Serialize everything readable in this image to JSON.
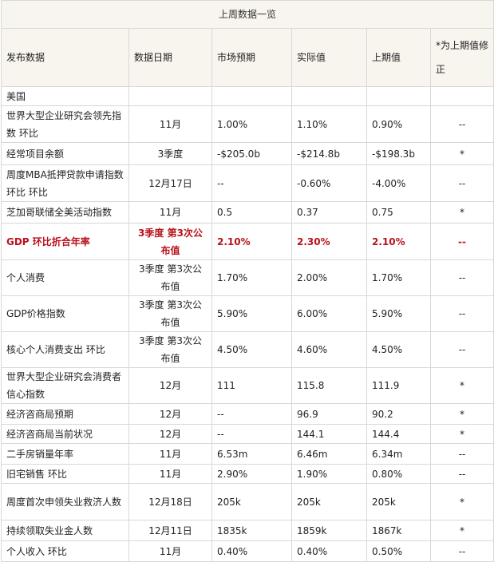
{
  "table": {
    "title": "上周数据一览",
    "headers": [
      "发布数据",
      "数据日期",
      "市场预期",
      "实际值",
      "上期值",
      "*为上期值修正"
    ],
    "rows": [
      {
        "cells": [
          "美国",
          "",
          "",
          "",
          "",
          ""
        ],
        "h": 24
      },
      {
        "cells": [
          "世界大型企业研究会领先指数 环比",
          "11月",
          "1.00%",
          "1.10%",
          "0.90%",
          "--"
        ],
        "h": 46
      },
      {
        "cells": [
          "经常项目余额",
          "3季度",
          "-$205.0b",
          "-$214.8b",
          "-$198.3b",
          "*"
        ],
        "h": 28
      },
      {
        "cells": [
          "周度MBA抵押贷款申请指数 环比 环比",
          "12月17日",
          "--",
          "-0.60%",
          "-4.00%",
          "--"
        ],
        "h": 46
      },
      {
        "cells": [
          "芝加哥联储全美活动指数",
          "11月",
          "0.5",
          "0.37",
          "0.75",
          "*"
        ],
        "h": 27
      },
      {
        "cells": [
          "GDP 环比折合年率",
          "3季度 第3次公布值",
          "2.10%",
          "2.30%",
          "2.10%",
          "--"
        ],
        "h": 46,
        "highlight": true
      },
      {
        "cells": [
          "个人消费",
          "3季度 第3次公布值",
          "1.70%",
          "2.00%",
          "1.70%",
          "--"
        ],
        "h": 44
      },
      {
        "cells": [
          "GDP价格指数",
          "3季度 第3次公布值",
          "5.90%",
          "6.00%",
          "5.90%",
          "--"
        ],
        "h": 44
      },
      {
        "cells": [
          "核心个人消费支出 环比",
          "3季度 第3次公布值",
          "4.50%",
          "4.60%",
          "4.50%",
          "--"
        ],
        "h": 44
      },
      {
        "cells": [
          "世界大型企业研究会消费者信心指数",
          "12月",
          "111",
          "115.8",
          "111.9",
          "*"
        ],
        "h": 44
      },
      {
        "cells": [
          "经济咨商局预期",
          "12月",
          "--",
          "96.9",
          "90.2",
          "*"
        ],
        "h": 26
      },
      {
        "cells": [
          "经济咨商局当前状况",
          "12月",
          "--",
          "144.1",
          "144.4",
          "*"
        ],
        "h": 24
      },
      {
        "cells": [
          "二手房销量年率",
          "11月",
          "6.53m",
          "6.46m",
          "6.34m",
          "--"
        ],
        "h": 26
      },
      {
        "cells": [
          "旧宅销售 环比",
          "11月",
          "2.90%",
          "1.90%",
          "0.80%",
          "--"
        ],
        "h": 24
      },
      {
        "cells": [
          "周度首次申领失业救济人数",
          "12月18日",
          "205k",
          "205k",
          "205k",
          "*"
        ],
        "h": 46
      },
      {
        "cells": [
          "持续领取失业金人数",
          "12月11日",
          "1835k",
          "1859k",
          "1867k",
          "*"
        ],
        "h": 26
      },
      {
        "cells": [
          "个人收入 环比",
          "11月",
          "0.40%",
          "0.40%",
          "0.50%",
          "--"
        ],
        "h": 26
      }
    ]
  }
}
